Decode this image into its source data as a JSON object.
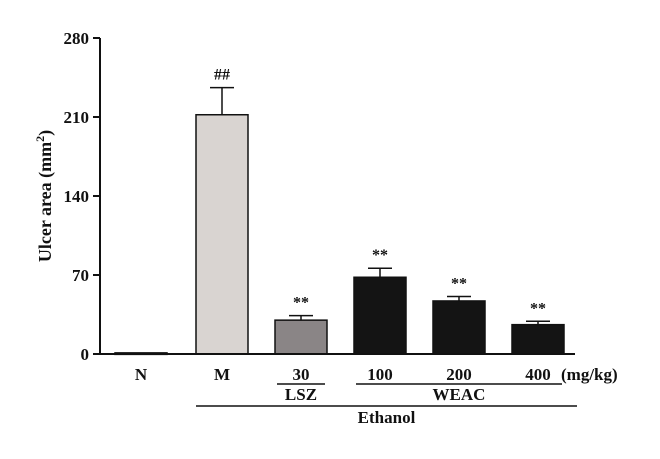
{
  "chart_data": {
    "type": "bar",
    "ylabel": "Ulcer area (mm",
    "ylabel_sup": "2",
    "ylabel_close": ")",
    "ylim": [
      0,
      280
    ],
    "yticks": [
      0,
      70,
      140,
      210,
      280
    ],
    "categories": [
      "N",
      "M",
      "30",
      "100",
      "200",
      "400"
    ],
    "values": [
      1,
      212,
      30,
      68,
      47,
      26
    ],
    "errors": [
      0.5,
      24,
      4,
      8,
      4,
      3
    ],
    "annotations": [
      "",
      "##",
      "**",
      "**",
      "**",
      "**"
    ],
    "colors": [
      "#ffffff",
      "#d9d4d1",
      "#8a8586",
      "#141414",
      "#141414",
      "#141414"
    ],
    "unit_label": "(mg/kg)",
    "groups": [
      {
        "label": "LSZ",
        "from": 2,
        "to": 2
      },
      {
        "label": "WEAC",
        "from": 3,
        "to": 5
      },
      {
        "label": "Ethanol",
        "from": 1,
        "to": 5
      }
    ]
  }
}
